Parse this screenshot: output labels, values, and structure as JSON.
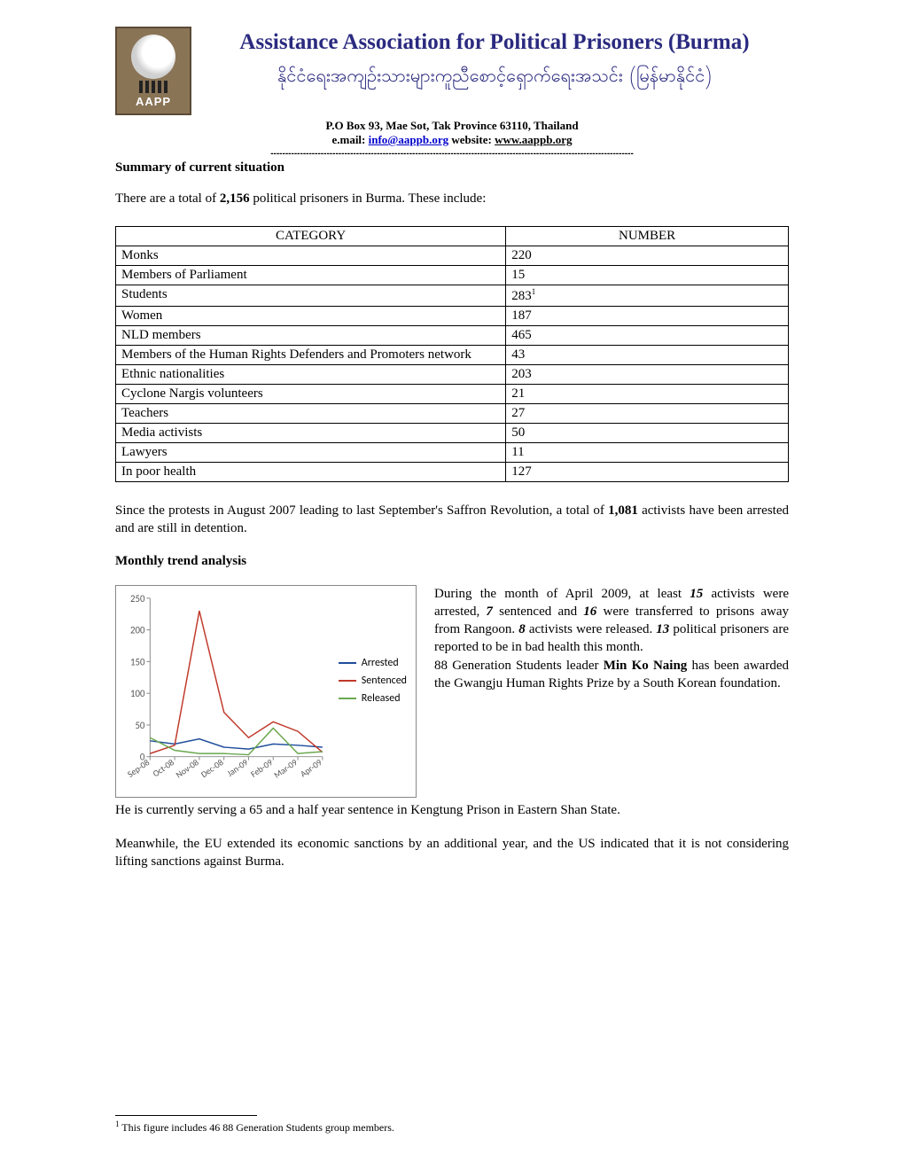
{
  "header": {
    "logo_text": "AAPP",
    "main_title": "Assistance Association for Political Prisoners (Burma)",
    "sub_title": "နိုင်ငံရေးအကျဉ်းသားများကူညီစောင့်ရှောက်ရေးအသင်း (မြန်မာနိုင်ငံ)",
    "address": "P.O Box 93, Mae Sot, Tak Province 63110, Thailand",
    "email_label": "e.mail: ",
    "email": "info@aappb.org",
    "website_label": "   website: ",
    "website": "www.aappb.org"
  },
  "summary": {
    "heading": "Summary of current situation",
    "intro_prefix": "There are a total of ",
    "total": "2,156",
    "intro_suffix": " political prisoners in Burma. These include:"
  },
  "table": {
    "col_category": "CATEGORY",
    "col_number": "NUMBER",
    "rows": [
      {
        "cat": "Monks",
        "num": "220",
        "sup": ""
      },
      {
        "cat": "Members of Parliament",
        "num": "15",
        "sup": ""
      },
      {
        "cat": "Students",
        "num": "283",
        "sup": "1"
      },
      {
        "cat": "Women",
        "num": "187",
        "sup": ""
      },
      {
        "cat": "NLD members",
        "num": "465",
        "sup": ""
      },
      {
        "cat": "Members of the Human Rights Defenders and Promoters network",
        "num": "43",
        "sup": ""
      },
      {
        "cat": "Ethnic nationalities",
        "num": "203",
        "sup": ""
      },
      {
        "cat": "Cyclone Nargis volunteers",
        "num": "21",
        "sup": ""
      },
      {
        "cat": "Teachers",
        "num": "27",
        "sup": ""
      },
      {
        "cat": "Media activists",
        "num": "50",
        "sup": ""
      },
      {
        "cat": "Lawyers",
        "num": "11",
        "sup": ""
      },
      {
        "cat": "In poor health",
        "num": "127",
        "sup": ""
      }
    ]
  },
  "since_para_prefix": "Since the protests in August 2007 leading to last September's Saffron Revolution, a total of ",
  "since_count": "1,081",
  "since_para_suffix": " activists have been arrested and are still in detention.",
  "monthly": {
    "heading": "Monthly trend analysis",
    "text_p1_a": "During the month of April 2009, at least ",
    "arrested": "15",
    "text_p1_b": " activists were arrested, ",
    "sentenced": "7",
    "text_p1_c": " sentenced and ",
    "transferred": "16",
    "text_p1_d": " were transferred to prisons away from Rangoon. ",
    "released": "8",
    "text_p1_e": " activists were released.  ",
    "badhealth": "13",
    "text_p1_f": " political prisoners are reported to be in bad health this month.",
    "text_p2_a": "88 Generation Students leader ",
    "name": "Min Ko Naing",
    "text_p2_b": " has been awarded the Gwangju Human Rights Prize by a South Korean foundation.",
    "continue": "He is currently serving a 65 and a half year sentence in Kengtung Prison in Eastern Shan State.",
    "meanwhile": "Meanwhile, the EU extended its economic sanctions by an additional year, and the US indicated that it is not considering lifting sanctions against Burma."
  },
  "chart": {
    "type": "line",
    "categories": [
      "Sep-08",
      "Oct-08",
      "Nov-08",
      "Dec-08",
      "Jan-09",
      "Feb-09",
      "Mar-09",
      "Apr-09"
    ],
    "ylim": [
      0,
      250
    ],
    "ytick_step": 50,
    "yticks": [
      "0",
      "50",
      "100",
      "150",
      "200",
      "250"
    ],
    "series": [
      {
        "name": "Arrested",
        "color": "#1f4e9c",
        "values": [
          25,
          20,
          28,
          15,
          12,
          20,
          18,
          15
        ]
      },
      {
        "name": "Sentenced",
        "color": "#c0392b",
        "values": [
          5,
          18,
          230,
          70,
          30,
          55,
          40,
          7
        ]
      },
      {
        "name": "Released",
        "color": "#6aa84f",
        "values": [
          30,
          10,
          5,
          5,
          3,
          45,
          5,
          8
        ]
      }
    ],
    "line_width": 1.5,
    "background_color": "#ffffff",
    "axis_color": "#888888",
    "label_fontsize": 11,
    "tick_fontsize": 10
  },
  "footnote": {
    "marker": "1",
    "text": " This figure includes 46 88 Generation Students group members."
  }
}
